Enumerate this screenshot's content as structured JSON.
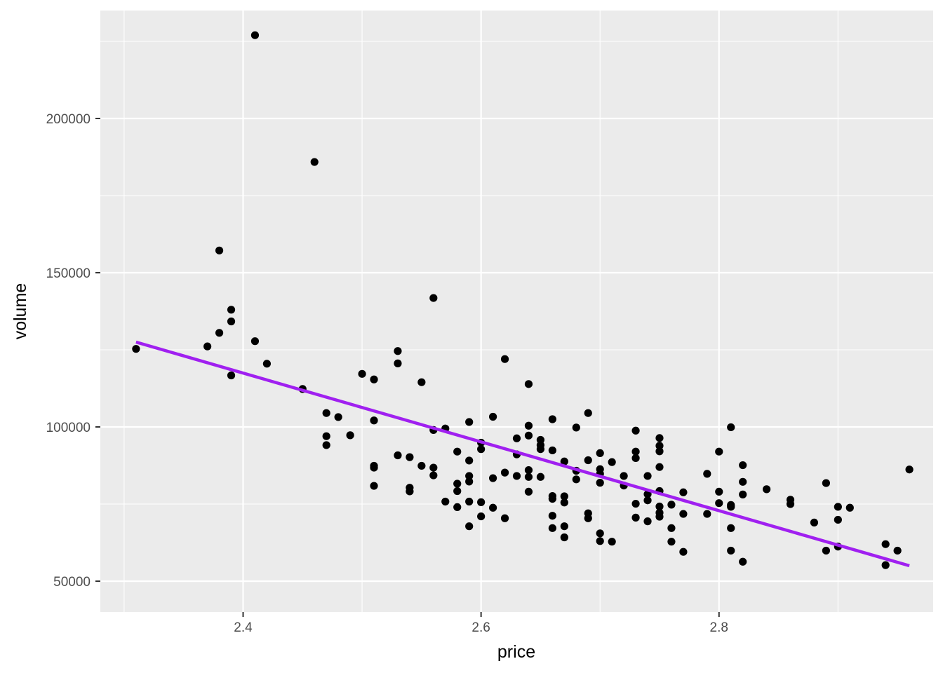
{
  "chart_data": {
    "type": "scatter",
    "title": "",
    "xlabel": "price",
    "ylabel": "volume",
    "xlim": [
      2.28,
      2.98
    ],
    "ylim": [
      40000,
      235000
    ],
    "x_ticks": [
      2.4,
      2.6,
      2.8
    ],
    "x_tick_labels": [
      "2.4",
      "2.6",
      "2.8"
    ],
    "y_ticks": [
      50000,
      100000,
      150000,
      200000
    ],
    "y_tick_labels": [
      "50000",
      "100000",
      "150000",
      "200000"
    ],
    "x_minor_ticks": [
      2.3,
      2.5,
      2.7,
      2.9
    ],
    "y_minor_ticks": [
      75000,
      125000,
      175000,
      225000
    ],
    "grid": true,
    "panel_background": "#ebebeb",
    "grid_color": "#ffffff",
    "point_color": "#000000",
    "trend_color": "#a020f0",
    "trend_line": {
      "x": [
        2.31,
        2.96
      ],
      "y": [
        127500,
        55000
      ]
    },
    "series": [
      {
        "points": [
          [
            2.31,
            125300
          ],
          [
            2.37,
            126100
          ],
          [
            2.38,
            157200
          ],
          [
            2.38,
            130500
          ],
          [
            2.39,
            138000
          ],
          [
            2.39,
            134200
          ],
          [
            2.39,
            116700
          ],
          [
            2.41,
            227000
          ],
          [
            2.41,
            127800
          ],
          [
            2.42,
            120500
          ],
          [
            2.45,
            112300
          ],
          [
            2.46,
            185900
          ],
          [
            2.47,
            104500
          ],
          [
            2.47,
            97000
          ],
          [
            2.47,
            94100
          ],
          [
            2.48,
            103200
          ],
          [
            2.49,
            97300
          ],
          [
            2.5,
            117200
          ],
          [
            2.51,
            115400
          ],
          [
            2.51,
            102100
          ],
          [
            2.51,
            87400
          ],
          [
            2.51,
            86800
          ],
          [
            2.51,
            80900
          ],
          [
            2.53,
            124600
          ],
          [
            2.53,
            120600
          ],
          [
            2.53,
            90800
          ],
          [
            2.54,
            90200
          ],
          [
            2.54,
            80300
          ],
          [
            2.54,
            79100
          ],
          [
            2.55,
            114500
          ],
          [
            2.55,
            87400
          ],
          [
            2.56,
            141800
          ],
          [
            2.56,
            99000
          ],
          [
            2.56,
            86800
          ],
          [
            2.56,
            84300
          ],
          [
            2.57,
            99500
          ],
          [
            2.57,
            75800
          ],
          [
            2.58,
            92000
          ],
          [
            2.58,
            81600
          ],
          [
            2.58,
            79200
          ],
          [
            2.58,
            74000
          ],
          [
            2.59,
            101600
          ],
          [
            2.59,
            89100
          ],
          [
            2.59,
            84100
          ],
          [
            2.59,
            82300
          ],
          [
            2.59,
            75800
          ],
          [
            2.59,
            67800
          ],
          [
            2.6,
            94900
          ],
          [
            2.6,
            92800
          ],
          [
            2.6,
            75600
          ],
          [
            2.6,
            71000
          ],
          [
            2.61,
            103300
          ],
          [
            2.61,
            83400
          ],
          [
            2.61,
            73800
          ],
          [
            2.62,
            122000
          ],
          [
            2.62,
            85200
          ],
          [
            2.62,
            70400
          ],
          [
            2.63,
            96300
          ],
          [
            2.63,
            91100
          ],
          [
            2.63,
            84100
          ],
          [
            2.64,
            113900
          ],
          [
            2.64,
            100400
          ],
          [
            2.64,
            97200
          ],
          [
            2.64,
            86000
          ],
          [
            2.64,
            83800
          ],
          [
            2.64,
            79000
          ],
          [
            2.65,
            95800
          ],
          [
            2.65,
            94100
          ],
          [
            2.65,
            92800
          ],
          [
            2.65,
            83800
          ],
          [
            2.66,
            102500
          ],
          [
            2.66,
            92400
          ],
          [
            2.66,
            77600
          ],
          [
            2.66,
            76700
          ],
          [
            2.66,
            71200
          ],
          [
            2.66,
            67200
          ],
          [
            2.67,
            88800
          ],
          [
            2.67,
            77500
          ],
          [
            2.67,
            75500
          ],
          [
            2.67,
            67800
          ],
          [
            2.67,
            64200
          ],
          [
            2.68,
            99800
          ],
          [
            2.68,
            85800
          ],
          [
            2.68,
            83000
          ],
          [
            2.69,
            104500
          ],
          [
            2.69,
            89200
          ],
          [
            2.69,
            72000
          ],
          [
            2.69,
            70400
          ],
          [
            2.7,
            91500
          ],
          [
            2.7,
            86300
          ],
          [
            2.7,
            84800
          ],
          [
            2.7,
            81900
          ],
          [
            2.7,
            65500
          ],
          [
            2.7,
            63000
          ],
          [
            2.71,
            88600
          ],
          [
            2.71,
            62800
          ],
          [
            2.72,
            84100
          ],
          [
            2.72,
            81000
          ],
          [
            2.73,
            98800
          ],
          [
            2.73,
            92000
          ],
          [
            2.73,
            89900
          ],
          [
            2.73,
            75100
          ],
          [
            2.73,
            70600
          ],
          [
            2.74,
            84100
          ],
          [
            2.74,
            78200
          ],
          [
            2.74,
            76200
          ],
          [
            2.74,
            69400
          ],
          [
            2.75,
            96400
          ],
          [
            2.75,
            93900
          ],
          [
            2.75,
            92100
          ],
          [
            2.75,
            87000
          ],
          [
            2.75,
            79200
          ],
          [
            2.75,
            74200
          ],
          [
            2.75,
            72200
          ],
          [
            2.75,
            70900
          ],
          [
            2.76,
            74800
          ],
          [
            2.76,
            67200
          ],
          [
            2.76,
            62800
          ],
          [
            2.77,
            78800
          ],
          [
            2.77,
            71800
          ],
          [
            2.77,
            59500
          ],
          [
            2.79,
            84800
          ],
          [
            2.79,
            71800
          ],
          [
            2.8,
            92000
          ],
          [
            2.8,
            79000
          ],
          [
            2.8,
            75300
          ],
          [
            2.81,
            99900
          ],
          [
            2.81,
            74700
          ],
          [
            2.81,
            74100
          ],
          [
            2.81,
            67200
          ],
          [
            2.81,
            59900
          ],
          [
            2.82,
            87600
          ],
          [
            2.82,
            82200
          ],
          [
            2.82,
            78100
          ],
          [
            2.82,
            56300
          ],
          [
            2.84,
            79800
          ],
          [
            2.86,
            76400
          ],
          [
            2.86,
            75000
          ],
          [
            2.88,
            69000
          ],
          [
            2.89,
            81800
          ],
          [
            2.89,
            59900
          ],
          [
            2.9,
            74100
          ],
          [
            2.9,
            69900
          ],
          [
            2.9,
            61200
          ],
          [
            2.91,
            73800
          ],
          [
            2.94,
            62000
          ],
          [
            2.94,
            55200
          ],
          [
            2.95,
            59900
          ],
          [
            2.96,
            86200
          ]
        ]
      }
    ]
  }
}
